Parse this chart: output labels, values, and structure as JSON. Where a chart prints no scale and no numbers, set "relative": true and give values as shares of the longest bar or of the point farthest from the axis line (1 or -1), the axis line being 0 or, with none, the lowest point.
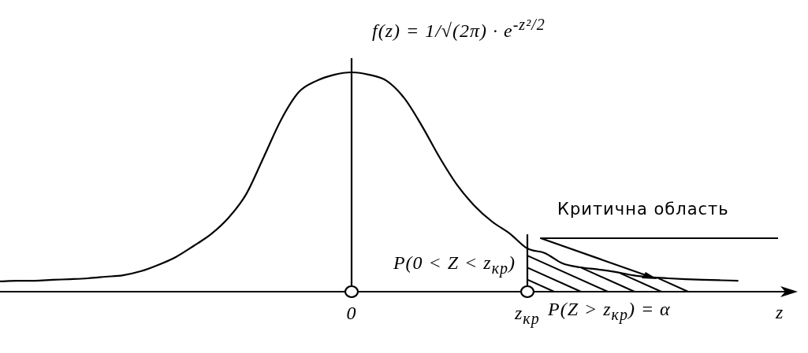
{
  "chart_data": {
    "type": "line",
    "relative": true,
    "title": "f(z) = 1/√(2π) · e$^{-z²/2}$",
    "xlabel": "z",
    "categories": [
      null,
      null,
      null,
      null,
      null,
      null,
      null,
      null,
      null,
      null,
      null,
      null,
      null,
      null,
      null,
      null,
      null,
      null,
      null,
      null,
      "0",
      null,
      null,
      null,
      null,
      null,
      null,
      null,
      null,
      null,
      "z$_{кр}$",
      null,
      null,
      null,
      null,
      null,
      null,
      null,
      null,
      null,
      null,
      null,
      null
    ],
    "series": [
      {
        "color": "#000000",
        "values": [
          0.047,
          0.05,
          0.05,
          0.054,
          0.057,
          0.061,
          0.068,
          0.075,
          0.093,
          0.122,
          0.158,
          0.208,
          0.262,
          0.337,
          0.444,
          0.613,
          0.785,
          0.91,
          0.961,
          0.989,
          1,
          0.989,
          0.961,
          0.882,
          0.756,
          0.613,
          0.487,
          0.391,
          0.319,
          0.265,
          0.197,
          0.176,
          0.129,
          0.111,
          0.102,
          0.09,
          0.075,
          0.066,
          0.061,
          0.057,
          0.054,
          0.052,
          0.05
        ]
      }
    ],
    "ref_lines": [
      {
        "axis": "x",
        "value": "0"
      },
      {
        "axis": "x",
        "value": "z$_{кр}$"
      }
    ],
    "annotations": [
      "Критична область",
      "P(0 < Z < z$_{кр}$)",
      "P(Z > z$_{кр}$) = α"
    ],
    "marker": "none",
    "line_style": "solid",
    "legend": false,
    "grid": false
  }
}
